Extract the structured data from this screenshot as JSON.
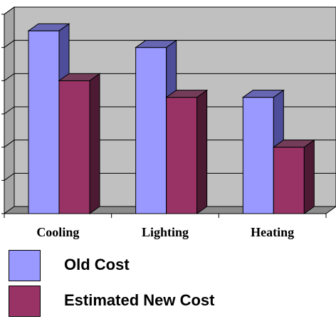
{
  "chart_data": {
    "type": "bar",
    "categories": [
      "Cooling",
      "Lighting",
      "Heating"
    ],
    "series": [
      {
        "name": "Old Cost",
        "values": [
          5.5,
          5.0,
          3.5
        ],
        "color": "#9999ff",
        "side": "#4d4d99",
        "top": "#6666b3"
      },
      {
        "name": "Estimated New Cost",
        "values": [
          4.0,
          3.5,
          2.0
        ],
        "color": "#993366",
        "side": "#4d1a33",
        "top": "#733d59"
      }
    ],
    "ylim": [
      0,
      6
    ],
    "grid": true,
    "legend": "bottom",
    "colors": {
      "wall": "#c0c0c0",
      "floor": "#8c8c8c",
      "grid": "#000000"
    }
  }
}
